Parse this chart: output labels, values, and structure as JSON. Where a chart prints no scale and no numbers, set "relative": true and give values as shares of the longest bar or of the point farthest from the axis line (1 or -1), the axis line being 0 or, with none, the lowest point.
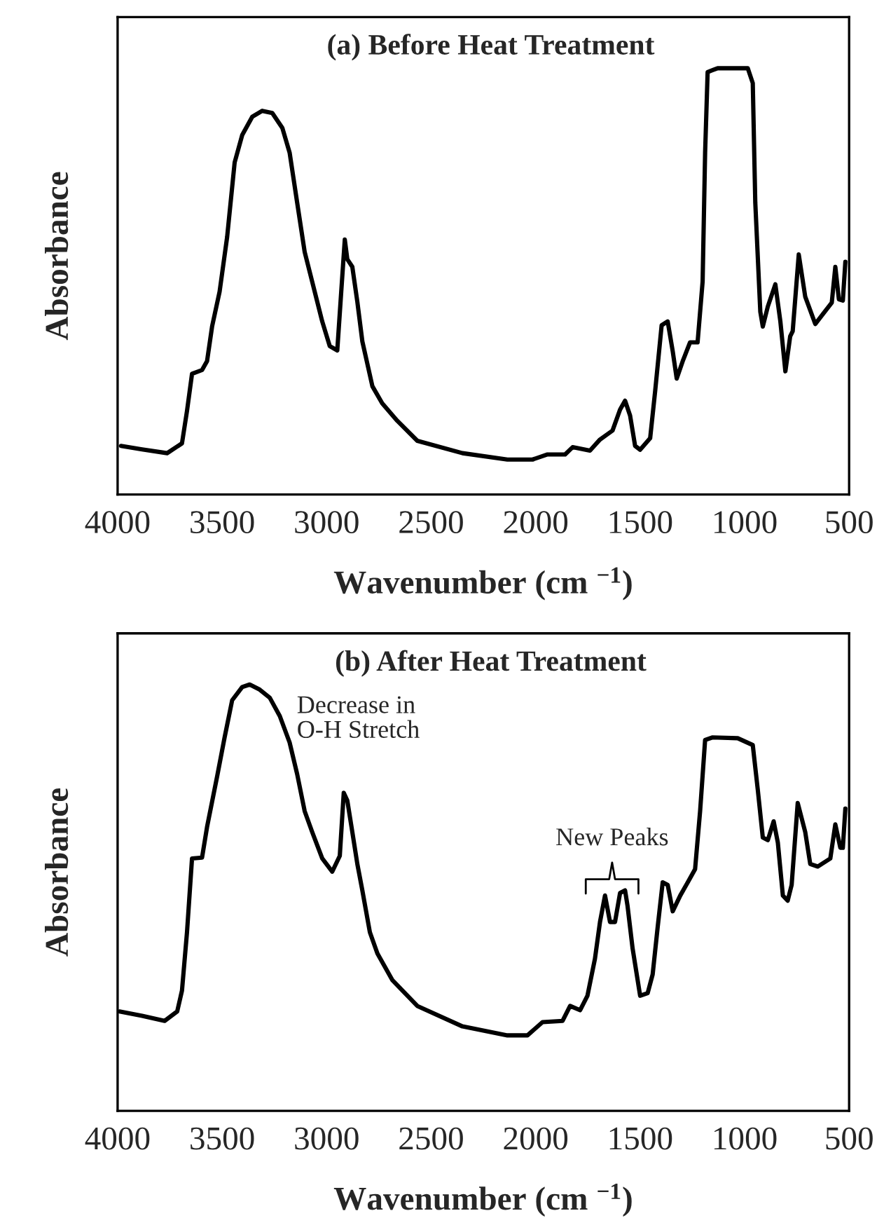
{
  "chart_data": [
    {
      "type": "line",
      "title": "(a) Before Heat Treatment",
      "xlabel": "Wavenumber (cm $^{−1}$)",
      "ylabel": "Absorbance",
      "relative": true,
      "xlim": [
        4000,
        500
      ],
      "xticks": [
        4000,
        3500,
        3000,
        2500,
        2000,
        1500,
        1000,
        500
      ],
      "x": [
        3984,
        3883,
        3763,
        3692,
        3668,
        3644,
        3596,
        3572,
        3548,
        3512,
        3476,
        3440,
        3404,
        3356,
        3308,
        3260,
        3212,
        3177,
        3141,
        3105,
        3069,
        3021,
        2985,
        2949,
        2930,
        2913,
        2901,
        2877,
        2853,
        2829,
        2781,
        2734,
        2662,
        2566,
        2350,
        2135,
        2015,
        1943,
        1859,
        1823,
        1740,
        1692,
        1632,
        1596,
        1572,
        1548,
        1524,
        1500,
        1452,
        1428,
        1397,
        1368,
        1344,
        1325,
        1296,
        1261,
        1225,
        1201,
        1189,
        1177,
        1129,
        985,
        961,
        949,
        925,
        913,
        889,
        853,
        829,
        805,
        782,
        770,
        741,
        710,
        662,
        626,
        583,
        566,
        549,
        530,
        518
      ],
      "series": [
        {
          "color": "#000000",
          "values": [
            0.114,
            0.106,
            0.097,
            0.12,
            0.196,
            0.283,
            0.292,
            0.313,
            0.394,
            0.476,
            0.604,
            0.779,
            0.843,
            0.886,
            0.9,
            0.895,
            0.86,
            0.802,
            0.685,
            0.569,
            0.499,
            0.406,
            0.348,
            0.338,
            0.476,
            0.598,
            0.552,
            0.534,
            0.452,
            0.359,
            0.254,
            0.214,
            0.173,
            0.126,
            0.097,
            0.082,
            0.082,
            0.094,
            0.094,
            0.111,
            0.103,
            0.129,
            0.15,
            0.199,
            0.22,
            0.185,
            0.114,
            0.105,
            0.132,
            0.243,
            0.397,
            0.406,
            0.336,
            0.272,
            0.313,
            0.357,
            0.357,
            0.499,
            0.802,
            0.991,
            1.0,
            1.0,
            0.965,
            0.685,
            0.429,
            0.394,
            0.441,
            0.493,
            0.406,
            0.289,
            0.371,
            0.383,
            0.563,
            0.464,
            0.4,
            0.423,
            0.45,
            0.534,
            0.458,
            0.455,
            0.546
          ]
        }
      ]
    },
    {
      "type": "line",
      "title": "(b) After Heat Treatment",
      "xlabel": "Wavenumber (cm $^{−1}$)",
      "ylabel": "Absorbance",
      "relative": true,
      "xlim": [
        4000,
        500
      ],
      "xticks": [
        4000,
        3500,
        3000,
        2500,
        2000,
        1500,
        1000,
        500
      ],
      "annotations": [
        "Decrease in\nO-H Stretch",
        "New Peaks"
      ],
      "x": [
        3991,
        3883,
        3775,
        3715,
        3692,
        3668,
        3644,
        3596,
        3572,
        3524,
        3488,
        3452,
        3404,
        3368,
        3320,
        3272,
        3224,
        3177,
        3141,
        3105,
        3069,
        3021,
        2973,
        2937,
        2918,
        2901,
        2877,
        2853,
        2829,
        2793,
        2757,
        2686,
        2566,
        2350,
        2135,
        2039,
        1967,
        1871,
        1835,
        1787,
        1752,
        1716,
        1692,
        1668,
        1644,
        1620,
        1596,
        1572,
        1560,
        1536,
        1500,
        1464,
        1440,
        1416,
        1392,
        1368,
        1344,
        1308,
        1272,
        1237,
        1213,
        1189,
        1153,
        1033,
        961,
        937,
        913,
        889,
        861,
        841,
        817,
        794,
        775,
        746,
        710,
        686,
        650,
        590,
        566,
        542,
        530,
        518
      ],
      "series": [
        {
          "color": "#000000",
          "values": [
            0.233,
            0.223,
            0.211,
            0.233,
            0.282,
            0.419,
            0.592,
            0.594,
            0.666,
            0.784,
            0.876,
            0.963,
            0.994,
            1.0,
            0.988,
            0.969,
            0.926,
            0.864,
            0.79,
            0.703,
            0.654,
            0.592,
            0.561,
            0.598,
            0.746,
            0.728,
            0.654,
            0.579,
            0.517,
            0.419,
            0.369,
            0.307,
            0.246,
            0.198,
            0.177,
            0.177,
            0.208,
            0.211,
            0.246,
            0.236,
            0.27,
            0.357,
            0.443,
            0.505,
            0.443,
            0.443,
            0.511,
            0.517,
            0.48,
            0.381,
            0.27,
            0.276,
            0.32,
            0.431,
            0.536,
            0.53,
            0.468,
            0.505,
            0.536,
            0.567,
            0.703,
            0.87,
            0.876,
            0.874,
            0.858,
            0.753,
            0.641,
            0.635,
            0.679,
            0.629,
            0.505,
            0.493,
            0.53,
            0.722,
            0.654,
            0.579,
            0.573,
            0.592,
            0.672,
            0.617,
            0.617,
            0.709
          ]
        }
      ]
    }
  ]
}
